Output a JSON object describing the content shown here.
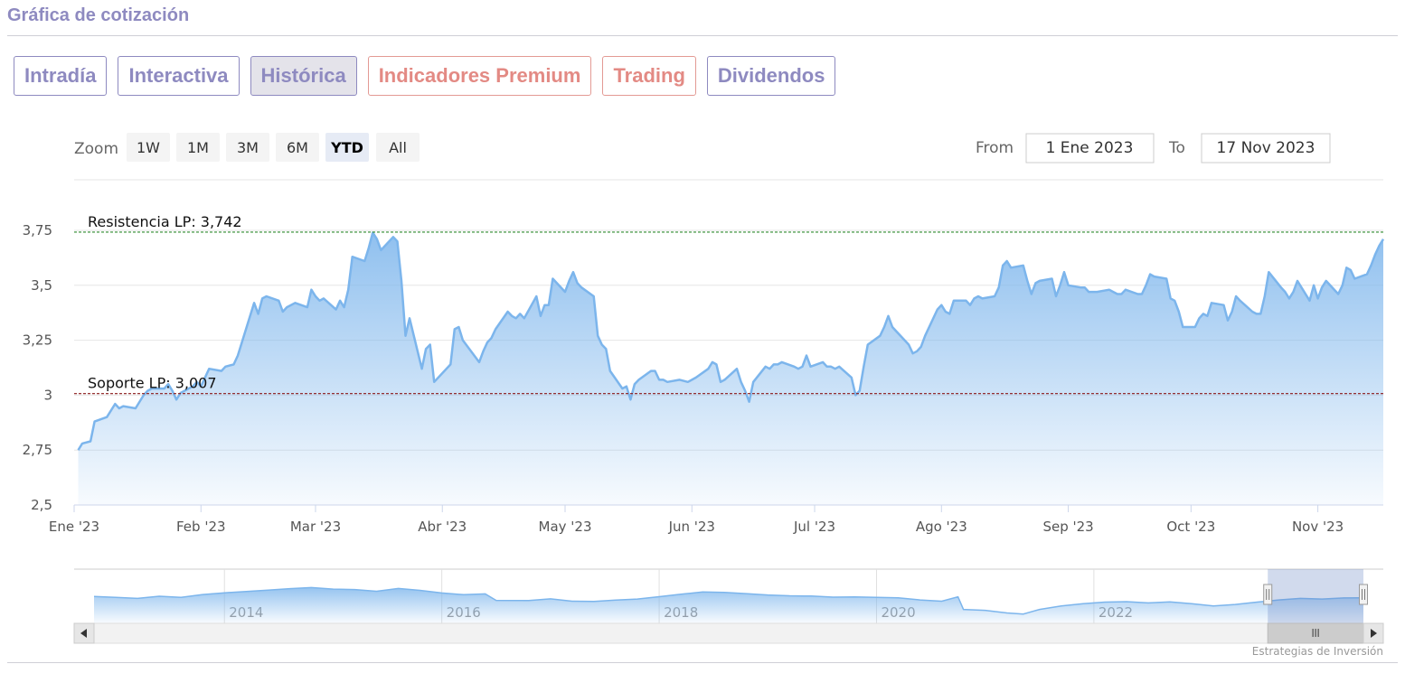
{
  "page": {
    "title": "Gráfica de cotización"
  },
  "tabs": [
    {
      "label": "Intradía",
      "style": "normal",
      "active": false
    },
    {
      "label": "Interactiva",
      "style": "normal",
      "active": false
    },
    {
      "label": "Histórica",
      "style": "normal",
      "active": true
    },
    {
      "label": "Indicadores Premium",
      "style": "premium",
      "active": false
    },
    {
      "label": "Trading",
      "style": "premium",
      "active": false
    },
    {
      "label": "Dividendos",
      "style": "normal",
      "active": false
    }
  ],
  "range_selector": {
    "zoom_label": "Zoom",
    "buttons": [
      "1W",
      "1M",
      "3M",
      "6M",
      "YTD",
      "All"
    ],
    "selected": "YTD",
    "from_label": "From",
    "from_value": "1 Ene 2023",
    "to_label": "To",
    "to_value": "17 Nov 2023"
  },
  "colors": {
    "line": "#7cb5ec",
    "resistance": "#2e8b2e",
    "support": "#8b1a1a",
    "accent": "#8e8ac0",
    "premium": "#e38a84"
  },
  "chart_data": {
    "type": "area",
    "ylim": [
      2.5,
      3.75
    ],
    "y_ticks": [
      2.5,
      2.75,
      3,
      3.25,
      3.5,
      3.75
    ],
    "y_tick_labels": [
      "2,5",
      "2,75",
      "3",
      "3,25",
      "3,5",
      "3,75"
    ],
    "x_ticks": [
      {
        "date": "2023-01-01",
        "label": "Ene '23"
      },
      {
        "date": "2023-02-01",
        "label": "Feb '23"
      },
      {
        "date": "2023-03-01",
        "label": "Mar '23"
      },
      {
        "date": "2023-04-01",
        "label": "Abr '23"
      },
      {
        "date": "2023-05-01",
        "label": "May '23"
      },
      {
        "date": "2023-06-01",
        "label": "Jun '23"
      },
      {
        "date": "2023-07-01",
        "label": "Jul '23"
      },
      {
        "date": "2023-08-01",
        "label": "Ago '23"
      },
      {
        "date": "2023-09-01",
        "label": "Sep '23"
      },
      {
        "date": "2023-10-01",
        "label": "Oct '23"
      },
      {
        "date": "2023-11-01",
        "label": "Nov '23"
      }
    ],
    "x_start": "2023-01-01",
    "x_end": "2023-11-17",
    "points": [
      [
        "2023-01-02",
        2.75
      ],
      [
        "2023-01-03",
        2.78
      ],
      [
        "2023-01-05",
        2.79
      ],
      [
        "2023-01-06",
        2.88
      ],
      [
        "2023-01-09",
        2.9
      ],
      [
        "2023-01-11",
        2.96
      ],
      [
        "2023-01-12",
        2.94
      ],
      [
        "2023-01-13",
        2.95
      ],
      [
        "2023-01-16",
        2.94
      ],
      [
        "2023-01-18",
        3.0
      ],
      [
        "2023-01-19",
        3.02
      ],
      [
        "2023-01-20",
        3.03
      ],
      [
        "2023-01-23",
        3.03
      ],
      [
        "2023-01-24",
        3.05
      ],
      [
        "2023-01-25",
        3.02
      ],
      [
        "2023-01-26",
        2.98
      ],
      [
        "2023-01-27",
        3.01
      ],
      [
        "2023-01-30",
        3.04
      ],
      [
        "2023-01-31",
        3.06
      ],
      [
        "2023-02-01",
        3.04
      ],
      [
        "2023-02-02",
        3.08
      ],
      [
        "2023-02-03",
        3.12
      ],
      [
        "2023-02-06",
        3.11
      ],
      [
        "2023-02-07",
        3.13
      ],
      [
        "2023-02-09",
        3.14
      ],
      [
        "2023-02-10",
        3.18
      ],
      [
        "2023-02-13",
        3.36
      ],
      [
        "2023-02-14",
        3.42
      ],
      [
        "2023-02-15",
        3.37
      ],
      [
        "2023-02-16",
        3.44
      ],
      [
        "2023-02-17",
        3.45
      ],
      [
        "2023-02-20",
        3.43
      ],
      [
        "2023-02-21",
        3.38
      ],
      [
        "2023-02-22",
        3.4
      ],
      [
        "2023-02-24",
        3.42
      ],
      [
        "2023-02-27",
        3.4
      ],
      [
        "2023-02-28",
        3.48
      ],
      [
        "2023-03-01",
        3.45
      ],
      [
        "2023-03-02",
        3.43
      ],
      [
        "2023-03-03",
        3.44
      ],
      [
        "2023-03-06",
        3.39
      ],
      [
        "2023-03-07",
        3.43
      ],
      [
        "2023-03-08",
        3.4
      ],
      [
        "2023-03-09",
        3.48
      ],
      [
        "2023-03-10",
        3.63
      ],
      [
        "2023-03-13",
        3.61
      ],
      [
        "2023-03-14",
        3.67
      ],
      [
        "2023-03-15",
        3.74
      ],
      [
        "2023-03-16",
        3.71
      ],
      [
        "2023-03-17",
        3.66
      ],
      [
        "2023-03-20",
        3.72
      ],
      [
        "2023-03-21",
        3.7
      ],
      [
        "2023-03-22",
        3.52
      ],
      [
        "2023-03-23",
        3.27
      ],
      [
        "2023-03-24",
        3.35
      ],
      [
        "2023-03-27",
        3.12
      ],
      [
        "2023-03-28",
        3.21
      ],
      [
        "2023-03-29",
        3.23
      ],
      [
        "2023-03-30",
        3.06
      ],
      [
        "2023-04-03",
        3.14
      ],
      [
        "2023-04-04",
        3.3
      ],
      [
        "2023-04-05",
        3.31
      ],
      [
        "2023-04-06",
        3.25
      ],
      [
        "2023-04-10",
        3.15
      ],
      [
        "2023-04-11",
        3.2
      ],
      [
        "2023-04-12",
        3.24
      ],
      [
        "2023-04-13",
        3.26
      ],
      [
        "2023-04-14",
        3.3
      ],
      [
        "2023-04-17",
        3.38
      ],
      [
        "2023-04-18",
        3.36
      ],
      [
        "2023-04-19",
        3.35
      ],
      [
        "2023-04-20",
        3.37
      ],
      [
        "2023-04-21",
        3.35
      ],
      [
        "2023-04-24",
        3.45
      ],
      [
        "2023-04-25",
        3.36
      ],
      [
        "2023-04-26",
        3.41
      ],
      [
        "2023-04-27",
        3.41
      ],
      [
        "2023-04-28",
        3.53
      ],
      [
        "2023-05-01",
        3.47
      ],
      [
        "2023-05-02",
        3.52
      ],
      [
        "2023-05-03",
        3.56
      ],
      [
        "2023-05-04",
        3.51
      ],
      [
        "2023-05-05",
        3.49
      ],
      [
        "2023-05-08",
        3.45
      ],
      [
        "2023-05-09",
        3.27
      ],
      [
        "2023-05-10",
        3.23
      ],
      [
        "2023-05-11",
        3.21
      ],
      [
        "2023-05-12",
        3.11
      ],
      [
        "2023-05-15",
        3.03
      ],
      [
        "2023-05-16",
        3.04
      ],
      [
        "2023-05-17",
        2.98
      ],
      [
        "2023-05-18",
        3.05
      ],
      [
        "2023-05-19",
        3.07
      ],
      [
        "2023-05-22",
        3.11
      ],
      [
        "2023-05-23",
        3.11
      ],
      [
        "2023-05-24",
        3.07
      ],
      [
        "2023-05-25",
        3.07
      ],
      [
        "2023-05-26",
        3.06
      ],
      [
        "2023-05-29",
        3.07
      ],
      [
        "2023-05-31",
        3.06
      ],
      [
        "2023-06-01",
        3.07
      ],
      [
        "2023-06-02",
        3.08
      ],
      [
        "2023-06-05",
        3.12
      ],
      [
        "2023-06-06",
        3.15
      ],
      [
        "2023-06-07",
        3.14
      ],
      [
        "2023-06-08",
        3.06
      ],
      [
        "2023-06-09",
        3.07
      ],
      [
        "2023-06-12",
        3.12
      ],
      [
        "2023-06-13",
        3.06
      ],
      [
        "2023-06-14",
        3.02
      ],
      [
        "2023-06-15",
        2.97
      ],
      [
        "2023-06-16",
        3.06
      ],
      [
        "2023-06-19",
        3.13
      ],
      [
        "2023-06-20",
        3.12
      ],
      [
        "2023-06-21",
        3.14
      ],
      [
        "2023-06-22",
        3.14
      ],
      [
        "2023-06-23",
        3.15
      ],
      [
        "2023-06-26",
        3.13
      ],
      [
        "2023-06-27",
        3.12
      ],
      [
        "2023-06-28",
        3.13
      ],
      [
        "2023-06-29",
        3.18
      ],
      [
        "2023-06-30",
        3.13
      ],
      [
        "2023-07-03",
        3.15
      ],
      [
        "2023-07-04",
        3.13
      ],
      [
        "2023-07-05",
        3.13
      ],
      [
        "2023-07-06",
        3.12
      ],
      [
        "2023-07-07",
        3.13
      ],
      [
        "2023-07-10",
        3.08
      ],
      [
        "2023-07-11",
        3.0
      ],
      [
        "2023-07-12",
        3.02
      ],
      [
        "2023-07-13",
        3.13
      ],
      [
        "2023-07-14",
        3.23
      ],
      [
        "2023-07-17",
        3.27
      ],
      [
        "2023-07-18",
        3.31
      ],
      [
        "2023-07-19",
        3.36
      ],
      [
        "2023-07-20",
        3.31
      ],
      [
        "2023-07-21",
        3.29
      ],
      [
        "2023-07-24",
        3.23
      ],
      [
        "2023-07-25",
        3.19
      ],
      [
        "2023-07-26",
        3.2
      ],
      [
        "2023-07-27",
        3.22
      ],
      [
        "2023-07-28",
        3.27
      ],
      [
        "2023-07-31",
        3.39
      ],
      [
        "2023-08-01",
        3.41
      ],
      [
        "2023-08-02",
        3.38
      ],
      [
        "2023-08-03",
        3.37
      ],
      [
        "2023-08-04",
        3.43
      ],
      [
        "2023-08-07",
        3.43
      ],
      [
        "2023-08-08",
        3.41
      ],
      [
        "2023-08-09",
        3.44
      ],
      [
        "2023-08-10",
        3.45
      ],
      [
        "2023-08-11",
        3.44
      ],
      [
        "2023-08-14",
        3.45
      ],
      [
        "2023-08-15",
        3.49
      ],
      [
        "2023-08-16",
        3.59
      ],
      [
        "2023-08-17",
        3.61
      ],
      [
        "2023-08-18",
        3.58
      ],
      [
        "2023-08-21",
        3.59
      ],
      [
        "2023-08-22",
        3.52
      ],
      [
        "2023-08-23",
        3.46
      ],
      [
        "2023-08-24",
        3.51
      ],
      [
        "2023-08-25",
        3.52
      ],
      [
        "2023-08-28",
        3.53
      ],
      [
        "2023-08-29",
        3.45
      ],
      [
        "2023-08-30",
        3.5
      ],
      [
        "2023-08-31",
        3.56
      ],
      [
        "2023-09-01",
        3.5
      ],
      [
        "2023-09-04",
        3.49
      ],
      [
        "2023-09-05",
        3.49
      ],
      [
        "2023-09-06",
        3.47
      ],
      [
        "2023-09-07",
        3.47
      ],
      [
        "2023-09-08",
        3.47
      ],
      [
        "2023-09-11",
        3.48
      ],
      [
        "2023-09-12",
        3.47
      ],
      [
        "2023-09-13",
        3.46
      ],
      [
        "2023-09-14",
        3.46
      ],
      [
        "2023-09-15",
        3.48
      ],
      [
        "2023-09-18",
        3.46
      ],
      [
        "2023-09-19",
        3.46
      ],
      [
        "2023-09-20",
        3.5
      ],
      [
        "2023-09-21",
        3.55
      ],
      [
        "2023-09-22",
        3.54
      ],
      [
        "2023-09-25",
        3.53
      ],
      [
        "2023-09-26",
        3.44
      ],
      [
        "2023-09-27",
        3.43
      ],
      [
        "2023-09-28",
        3.38
      ],
      [
        "2023-09-29",
        3.31
      ],
      [
        "2023-10-02",
        3.31
      ],
      [
        "2023-10-03",
        3.35
      ],
      [
        "2023-10-04",
        3.37
      ],
      [
        "2023-10-05",
        3.36
      ],
      [
        "2023-10-06",
        3.42
      ],
      [
        "2023-10-09",
        3.41
      ],
      [
        "2023-10-10",
        3.34
      ],
      [
        "2023-10-11",
        3.38
      ],
      [
        "2023-10-12",
        3.45
      ],
      [
        "2023-10-13",
        3.43
      ],
      [
        "2023-10-16",
        3.38
      ],
      [
        "2023-10-17",
        3.37
      ],
      [
        "2023-10-18",
        3.37
      ],
      [
        "2023-10-19",
        3.45
      ],
      [
        "2023-10-20",
        3.56
      ],
      [
        "2023-10-23",
        3.49
      ],
      [
        "2023-10-24",
        3.47
      ],
      [
        "2023-10-25",
        3.44
      ],
      [
        "2023-10-26",
        3.47
      ],
      [
        "2023-10-27",
        3.52
      ],
      [
        "2023-10-30",
        3.43
      ],
      [
        "2023-10-31",
        3.5
      ],
      [
        "2023-11-01",
        3.44
      ],
      [
        "2023-11-02",
        3.49
      ],
      [
        "2023-11-03",
        3.52
      ],
      [
        "2023-11-06",
        3.46
      ],
      [
        "2023-11-07",
        3.5
      ],
      [
        "2023-11-08",
        3.58
      ],
      [
        "2023-11-09",
        3.57
      ],
      [
        "2023-11-10",
        3.53
      ],
      [
        "2023-11-13",
        3.55
      ],
      [
        "2023-11-14",
        3.59
      ],
      [
        "2023-11-15",
        3.64
      ],
      [
        "2023-11-16",
        3.68
      ],
      [
        "2023-11-17",
        3.71
      ]
    ],
    "reference_lines": [
      {
        "label": "Resistencia LP: 3,742",
        "value": 3.742,
        "color": "#2e8b2e"
      },
      {
        "label": "Soporte LP: 3,007",
        "value": 3.007,
        "color": "#8b1a1a"
      }
    ],
    "navigator": {
      "year_labels": [
        "2014",
        "2016",
        "2018",
        "2020",
        "2022"
      ],
      "year_ticks": [
        2013.4,
        2015.4,
        2017.4,
        2019.4,
        2021.4
      ],
      "x_range": [
        2012.2,
        2023.88
      ],
      "ylim": [
        2.0,
        4.5
      ],
      "points": [
        [
          2012.2,
          3.24
        ],
        [
          2012.4,
          3.2
        ],
        [
          2012.6,
          3.15
        ],
        [
          2012.8,
          3.25
        ],
        [
          2013.0,
          3.2
        ],
        [
          2013.2,
          3.33
        ],
        [
          2013.4,
          3.41
        ],
        [
          2013.6,
          3.47
        ],
        [
          2013.8,
          3.53
        ],
        [
          2014.0,
          3.6
        ],
        [
          2014.2,
          3.65
        ],
        [
          2014.4,
          3.58
        ],
        [
          2014.6,
          3.56
        ],
        [
          2014.8,
          3.48
        ],
        [
          2015.0,
          3.61
        ],
        [
          2015.2,
          3.52
        ],
        [
          2015.4,
          3.4
        ],
        [
          2015.6,
          3.32
        ],
        [
          2015.8,
          3.36
        ],
        [
          2015.9,
          3.06
        ],
        [
          2016.2,
          3.05
        ],
        [
          2016.4,
          3.13
        ],
        [
          2016.6,
          3.02
        ],
        [
          2016.8,
          3.01
        ],
        [
          2017.0,
          3.07
        ],
        [
          2017.2,
          3.12
        ],
        [
          2017.4,
          3.23
        ],
        [
          2017.6,
          3.34
        ],
        [
          2017.8,
          3.45
        ],
        [
          2018.0,
          3.43
        ],
        [
          2018.2,
          3.37
        ],
        [
          2018.4,
          3.31
        ],
        [
          2018.6,
          3.27
        ],
        [
          2018.8,
          3.26
        ],
        [
          2019.0,
          3.21
        ],
        [
          2019.2,
          3.22
        ],
        [
          2019.4,
          3.2
        ],
        [
          2019.6,
          3.18
        ],
        [
          2019.8,
          3.08
        ],
        [
          2020.0,
          3.02
        ],
        [
          2020.15,
          3.22
        ],
        [
          2020.2,
          2.64
        ],
        [
          2020.4,
          2.6
        ],
        [
          2020.6,
          2.48
        ],
        [
          2020.75,
          2.43
        ],
        [
          2020.9,
          2.64
        ],
        [
          2021.1,
          2.8
        ],
        [
          2021.3,
          2.91
        ],
        [
          2021.5,
          2.98
        ],
        [
          2021.7,
          3.0
        ],
        [
          2021.9,
          2.94
        ],
        [
          2022.1,
          2.99
        ],
        [
          2022.3,
          2.91
        ],
        [
          2022.5,
          2.8
        ],
        [
          2022.7,
          2.87
        ],
        [
          2022.9,
          2.98
        ],
        [
          2023.1,
          3.08
        ],
        [
          2023.3,
          3.15
        ],
        [
          2023.5,
          3.12
        ],
        [
          2023.7,
          3.17
        ],
        [
          2023.88,
          3.18
        ]
      ],
      "selected_range": [
        2023.0,
        2023.88
      ]
    },
    "credit": "Estrategias de Inversión"
  }
}
